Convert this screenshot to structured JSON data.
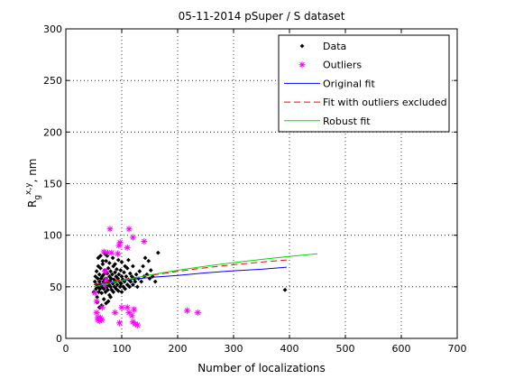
{
  "chart_data": {
    "type": "scatter",
    "title": "05-11-2014 pSuper / S dataset",
    "xlabel": "Number of localizations",
    "ylabel": {
      "base": "R",
      "sub": "g",
      "sup": "x,y",
      "unit": ", nm"
    },
    "xlim": [
      0,
      700
    ],
    "ylim": [
      0,
      300
    ],
    "xticks": [
      0,
      100,
      200,
      300,
      400,
      500,
      600,
      700
    ],
    "yticks": [
      0,
      50,
      100,
      150,
      200,
      250,
      300
    ],
    "grid": true,
    "legend_position": "top-right",
    "series": [
      {
        "name": "Data",
        "kind": "points",
        "marker": "dot",
        "color": "#000000",
        "points": [
          [
            50,
            45
          ],
          [
            52,
            55
          ],
          [
            53,
            60
          ],
          [
            54,
            48
          ],
          [
            55,
            52
          ],
          [
            55,
            65
          ],
          [
            56,
            40
          ],
          [
            57,
            58
          ],
          [
            58,
            50
          ],
          [
            58,
            70
          ],
          [
            59,
            45
          ],
          [
            60,
            62
          ],
          [
            60,
            55
          ],
          [
            61,
            48
          ],
          [
            62,
            52
          ],
          [
            62,
            68
          ],
          [
            63,
            58
          ],
          [
            64,
            44
          ],
          [
            65,
            60
          ],
          [
            65,
            50
          ],
          [
            66,
            72
          ],
          [
            67,
            55
          ],
          [
            68,
            48
          ],
          [
            68,
            62
          ],
          [
            69,
            57
          ],
          [
            70,
            52
          ],
          [
            70,
            66
          ],
          [
            71,
            45
          ],
          [
            72,
            58
          ],
          [
            72,
            75
          ],
          [
            73,
            50
          ],
          [
            74,
            63
          ],
          [
            75,
            55
          ],
          [
            75,
            47
          ],
          [
            76,
            68
          ],
          [
            77,
            52
          ],
          [
            78,
            60
          ],
          [
            78,
            42
          ],
          [
            79,
            56
          ],
          [
            80,
            65
          ],
          [
            80,
            50
          ],
          [
            81,
            58
          ],
          [
            82,
            47
          ],
          [
            83,
            62
          ],
          [
            84,
            53
          ],
          [
            85,
            70
          ],
          [
            85,
            45
          ],
          [
            86,
            57
          ],
          [
            87,
            50
          ],
          [
            88,
            64
          ],
          [
            89,
            55
          ],
          [
            90,
            48
          ],
          [
            90,
            60
          ],
          [
            91,
            67
          ],
          [
            92,
            52
          ],
          [
            93,
            58
          ],
          [
            94,
            46
          ],
          [
            95,
            62
          ],
          [
            96,
            55
          ],
          [
            97,
            50
          ],
          [
            98,
            66
          ],
          [
            99,
            53
          ],
          [
            100,
            60
          ],
          [
            100,
            45
          ],
          [
            102,
            57
          ],
          [
            103,
            50
          ],
          [
            104,
            64
          ],
          [
            105,
            55
          ],
          [
            106,
            48
          ],
          [
            108,
            60
          ],
          [
            110,
            52
          ],
          [
            110,
            68
          ],
          [
            112,
            57
          ],
          [
            114,
            50
          ],
          [
            115,
            63
          ],
          [
            116,
            55
          ],
          [
            118,
            60
          ],
          [
            120,
            52
          ],
          [
            120,
            70
          ],
          [
            122,
            58
          ],
          [
            124,
            55
          ],
          [
            126,
            62
          ],
          [
            128,
            50
          ],
          [
            130,
            58
          ],
          [
            132,
            65
          ],
          [
            135,
            55
          ],
          [
            138,
            70
          ],
          [
            140,
            60
          ],
          [
            142,
            78
          ],
          [
            145,
            62
          ],
          [
            148,
            75
          ],
          [
            150,
            58
          ],
          [
            152,
            66
          ],
          [
            155,
            60
          ],
          [
            160,
            55
          ],
          [
            165,
            83
          ],
          [
            56,
            35
          ],
          [
            60,
            30
          ],
          [
            64,
            32
          ],
          [
            68,
            38
          ],
          [
            72,
            34
          ],
          [
            76,
            36
          ],
          [
            80,
            40
          ],
          [
            58,
            78
          ],
          [
            62,
            80
          ],
          [
            66,
            75
          ],
          [
            70,
            82
          ],
          [
            74,
            80
          ],
          [
            78,
            73
          ],
          [
            84,
            78
          ],
          [
            88,
            72
          ],
          [
            94,
            76
          ],
          [
            100,
            74
          ],
          [
            106,
            70
          ],
          [
            112,
            76
          ],
          [
            392,
            47
          ]
        ]
      },
      {
        "name": "Outliers",
        "kind": "points",
        "marker": "star",
        "color": "#ff00ff",
        "points": [
          [
            79,
            106
          ],
          [
            95,
            90
          ],
          [
            97,
            93
          ],
          [
            113,
            106
          ],
          [
            120,
            98
          ],
          [
            140,
            94
          ],
          [
            68,
            84
          ],
          [
            75,
            83
          ],
          [
            82,
            83
          ],
          [
            93,
            82
          ],
          [
            110,
            88
          ],
          [
            100,
            30
          ],
          [
            55,
            25
          ],
          [
            57,
            20
          ],
          [
            58,
            18
          ],
          [
            60,
            17
          ],
          [
            62,
            20
          ],
          [
            64,
            18
          ],
          [
            88,
            25
          ],
          [
            110,
            30
          ],
          [
            113,
            25
          ],
          [
            118,
            22
          ],
          [
            120,
            16
          ],
          [
            124,
            14
          ],
          [
            128,
            13
          ],
          [
            70,
            65
          ],
          [
            70,
            52
          ],
          [
            72,
            57
          ],
          [
            52,
            44
          ],
          [
            55,
            36
          ],
          [
            217,
            27
          ],
          [
            236,
            25
          ],
          [
            65,
            30
          ],
          [
            96,
            15
          ],
          [
            122,
            28
          ]
        ]
      },
      {
        "name": "Original fit",
        "kind": "line",
        "dash": "",
        "color": "#0000ff",
        "x": [
          50,
          100,
          150,
          200,
          250,
          300,
          350,
          395
        ],
        "y": [
          52,
          56,
          59,
          61,
          63.5,
          65.5,
          67,
          69
        ]
      },
      {
        "name": "Fit with outliers excluded",
        "kind": "line",
        "dash": "7,4",
        "color": "#ff0000",
        "x": [
          50,
          100,
          150,
          200,
          250,
          300,
          350,
          395
        ],
        "y": [
          52,
          57,
          61,
          65,
          68.5,
          71.5,
          74,
          76
        ]
      },
      {
        "name": "Robust fit",
        "kind": "line",
        "dash": "",
        "color": "#00dd00",
        "x": [
          50,
          100,
          150,
          200,
          250,
          300,
          350,
          400,
          450
        ],
        "y": [
          50,
          56,
          61.5,
          66,
          70,
          73.5,
          76.5,
          79.5,
          82
        ]
      }
    ]
  }
}
